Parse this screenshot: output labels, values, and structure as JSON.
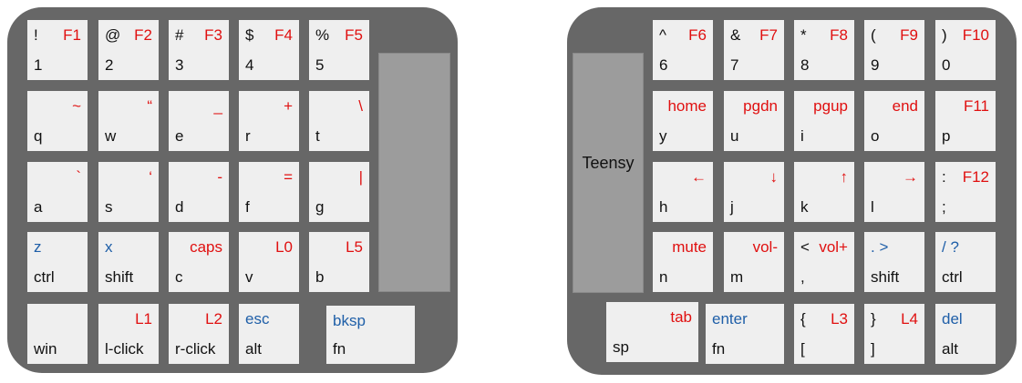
{
  "colors": {
    "red": "#e01010",
    "blue": "#1f5fa8",
    "black": "#111111"
  },
  "left_half": {
    "thumb_slab": "",
    "keys": [
      {
        "id": "key-1",
        "tl": "!",
        "tl_color": "black",
        "tr": "F1",
        "tr_color": "red",
        "bl": "1",
        "bl_color": "black"
      },
      {
        "id": "key-2",
        "tl": "@",
        "tl_color": "black",
        "tr": "F2",
        "tr_color": "red",
        "bl": "2",
        "bl_color": "black"
      },
      {
        "id": "key-3",
        "tl": "#",
        "tl_color": "black",
        "tr": "F3",
        "tr_color": "red",
        "bl": "3",
        "bl_color": "black"
      },
      {
        "id": "key-4",
        "tl": "$",
        "tl_color": "black",
        "tr": "F4",
        "tr_color": "red",
        "bl": "4",
        "bl_color": "black"
      },
      {
        "id": "key-5",
        "tl": "%",
        "tl_color": "black",
        "tr": "F5",
        "tr_color": "red",
        "bl": "5",
        "bl_color": "black"
      },
      {
        "id": "key-q",
        "tl": "",
        "tl_color": "black",
        "tr": "~",
        "tr_color": "red",
        "bl": "q",
        "bl_color": "black"
      },
      {
        "id": "key-w",
        "tl": "",
        "tl_color": "black",
        "tr": "“",
        "tr_color": "red",
        "bl": "w",
        "bl_color": "black"
      },
      {
        "id": "key-e",
        "tl": "",
        "tl_color": "black",
        "tr": "_",
        "tr_color": "red",
        "bl": "e",
        "bl_color": "black"
      },
      {
        "id": "key-r",
        "tl": "",
        "tl_color": "black",
        "tr": "+",
        "tr_color": "red",
        "bl": "r",
        "bl_color": "black"
      },
      {
        "id": "key-t",
        "tl": "",
        "tl_color": "black",
        "tr": "\\",
        "tr_color": "red",
        "bl": "t",
        "bl_color": "black"
      },
      {
        "id": "key-a",
        "tl": "",
        "tl_color": "black",
        "tr": "`",
        "tr_color": "red",
        "bl": "a",
        "bl_color": "black"
      },
      {
        "id": "key-s",
        "tl": "",
        "tl_color": "black",
        "tr": "‘",
        "tr_color": "red",
        "bl": "s",
        "bl_color": "black"
      },
      {
        "id": "key-d",
        "tl": "",
        "tl_color": "black",
        "tr": "-",
        "tr_color": "red",
        "bl": "d",
        "bl_color": "black"
      },
      {
        "id": "key-f",
        "tl": "",
        "tl_color": "black",
        "tr": "=",
        "tr_color": "red",
        "bl": "f",
        "bl_color": "black"
      },
      {
        "id": "key-g",
        "tl": "",
        "tl_color": "black",
        "tr": "|",
        "tr_color": "red",
        "bl": "g",
        "bl_color": "black"
      },
      {
        "id": "key-ctrl-left",
        "tl": "z",
        "tl_color": "blue",
        "tr": "",
        "tr_color": "red",
        "bl": "ctrl",
        "bl_color": "black"
      },
      {
        "id": "key-shift-left",
        "tl": "x",
        "tl_color": "blue",
        "tr": "",
        "tr_color": "red",
        "bl": "shift",
        "bl_color": "black"
      },
      {
        "id": "key-c",
        "tl": "",
        "tl_color": "black",
        "tr": "caps",
        "tr_color": "red",
        "bl": "c",
        "bl_color": "black"
      },
      {
        "id": "key-v",
        "tl": "",
        "tl_color": "black",
        "tr": "L0",
        "tr_color": "red",
        "bl": "v",
        "bl_color": "black"
      },
      {
        "id": "key-b",
        "tl": "",
        "tl_color": "black",
        "tr": "L5",
        "tr_color": "red",
        "bl": "b",
        "bl_color": "black"
      },
      {
        "id": "key-win",
        "tl": "",
        "tl_color": "black",
        "tr": "",
        "tr_color": "red",
        "bl": "win",
        "bl_color": "black"
      },
      {
        "id": "key-l-click",
        "tl": "",
        "tl_color": "black",
        "tr": "L1",
        "tr_color": "red",
        "bl": "l-click",
        "bl_color": "black"
      },
      {
        "id": "key-r-click",
        "tl": "",
        "tl_color": "black",
        "tr": "L2",
        "tr_color": "red",
        "bl": "r-click",
        "bl_color": "black"
      },
      {
        "id": "key-alt-left",
        "tl": "esc",
        "tl_color": "blue",
        "tr": "",
        "tr_color": "red",
        "bl": "alt",
        "bl_color": "black"
      },
      {
        "id": "key-fn-left",
        "tl": "bksp",
        "tl_color": "blue",
        "tr": "",
        "tr_color": "red",
        "bl": "fn",
        "bl_color": "black"
      }
    ]
  },
  "right_half": {
    "teensy_label": "Teensy",
    "keys": [
      {
        "id": "key-6",
        "tl": "^",
        "tl_color": "black",
        "tr": "F6",
        "tr_color": "red",
        "bl": "6",
        "bl_color": "black"
      },
      {
        "id": "key-7",
        "tl": "&",
        "tl_color": "black",
        "tr": "F7",
        "tr_color": "red",
        "bl": "7",
        "bl_color": "black"
      },
      {
        "id": "key-8",
        "tl": "*",
        "tl_color": "black",
        "tr": "F8",
        "tr_color": "red",
        "bl": "8",
        "bl_color": "black"
      },
      {
        "id": "key-9",
        "tl": "(",
        "tl_color": "black",
        "tr": "F9",
        "tr_color": "red",
        "bl": "9",
        "bl_color": "black"
      },
      {
        "id": "key-0",
        "tl": ")",
        "tl_color": "black",
        "tr": "F10",
        "tr_color": "red",
        "bl": "0",
        "bl_color": "black"
      },
      {
        "id": "key-y",
        "tl": "",
        "tl_color": "black",
        "tr": "home",
        "tr_color": "red",
        "bl": "y",
        "bl_color": "black"
      },
      {
        "id": "key-u",
        "tl": "",
        "tl_color": "black",
        "tr": "pgdn",
        "tr_color": "red",
        "bl": "u",
        "bl_color": "black"
      },
      {
        "id": "key-i",
        "tl": "",
        "tl_color": "black",
        "tr": "pgup",
        "tr_color": "red",
        "bl": "i",
        "bl_color": "black"
      },
      {
        "id": "key-o",
        "tl": "",
        "tl_color": "black",
        "tr": "end",
        "tr_color": "red",
        "bl": "o",
        "bl_color": "black"
      },
      {
        "id": "key-p",
        "tl": "",
        "tl_color": "black",
        "tr": "F11",
        "tr_color": "red",
        "bl": "p",
        "bl_color": "black"
      },
      {
        "id": "key-h",
        "tl": "",
        "tl_color": "black",
        "tr": "←",
        "tr_color": "red",
        "bl": "h",
        "bl_color": "black"
      },
      {
        "id": "key-j",
        "tl": "",
        "tl_color": "black",
        "tr": "↓",
        "tr_color": "red",
        "bl": "j",
        "bl_color": "black"
      },
      {
        "id": "key-k",
        "tl": "",
        "tl_color": "black",
        "tr": "↑",
        "tr_color": "red",
        "bl": "k",
        "bl_color": "black"
      },
      {
        "id": "key-l",
        "tl": "",
        "tl_color": "black",
        "tr": "→",
        "tr_color": "red",
        "bl": "l",
        "bl_color": "black"
      },
      {
        "id": "key-semicolon",
        "tl": ":",
        "tl_color": "black",
        "tr": "F12",
        "tr_color": "red",
        "bl": ";",
        "bl_color": "black"
      },
      {
        "id": "key-n",
        "tl": "",
        "tl_color": "black",
        "tr": "mute",
        "tr_color": "red",
        "bl": "n",
        "bl_color": "black"
      },
      {
        "id": "key-m",
        "tl": "",
        "tl_color": "black",
        "tr": "vol-",
        "tr_color": "red",
        "bl": "m",
        "bl_color": "black"
      },
      {
        "id": "key-comma",
        "tl": "<",
        "tl_color": "black",
        "tr": "vol+",
        "tr_color": "red",
        "bl": ",",
        "bl_color": "black"
      },
      {
        "id": "key-shift-right",
        "tl": ". >",
        "tl_color": "blue",
        "tr": "",
        "tr_color": "red",
        "bl": "shift",
        "bl_color": "black"
      },
      {
        "id": "key-ctrl-right",
        "tl": "/ ?",
        "tl_color": "blue",
        "tr": "",
        "tr_color": "red",
        "bl": "ctrl",
        "bl_color": "black"
      },
      {
        "id": "key-space",
        "tl": "",
        "tl_color": "black",
        "tr": "tab",
        "tr_color": "red",
        "bl": "sp",
        "bl_color": "black"
      },
      {
        "id": "key-fn-right",
        "tl": "enter",
        "tl_color": "blue",
        "tr": "",
        "tr_color": "red",
        "bl": "fn",
        "bl_color": "black"
      },
      {
        "id": "key-bracket-left",
        "tl": "{",
        "tl_color": "black",
        "tr": "L3",
        "tr_color": "red",
        "bl": "[",
        "bl_color": "black"
      },
      {
        "id": "key-bracket-right",
        "tl": "}",
        "tl_color": "black",
        "tr": "L4",
        "tr_color": "red",
        "bl": "]",
        "bl_color": "black"
      },
      {
        "id": "key-alt-right",
        "tl": "del",
        "tl_color": "blue",
        "tr": "",
        "tr_color": "red",
        "bl": "alt",
        "bl_color": "black"
      }
    ]
  }
}
